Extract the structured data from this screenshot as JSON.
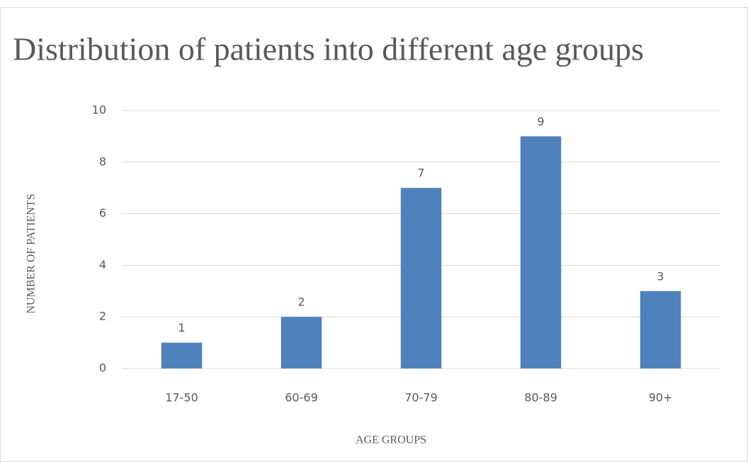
{
  "chart_data": {
    "type": "bar",
    "title": "Distribution of patients into different age groups",
    "x_label": "AGE GROUPS",
    "y_label": "NUMBER OF PATIENTS",
    "categories": [
      "17-50",
      "60-69",
      "70-79",
      "80-89",
      "90+"
    ],
    "values": [
      1,
      2,
      7,
      9,
      3
    ],
    "color": "#4f81bd",
    "ylim": [
      0,
      10
    ],
    "yticks": [
      0,
      2,
      4,
      6,
      8,
      10
    ],
    "grid": true
  }
}
